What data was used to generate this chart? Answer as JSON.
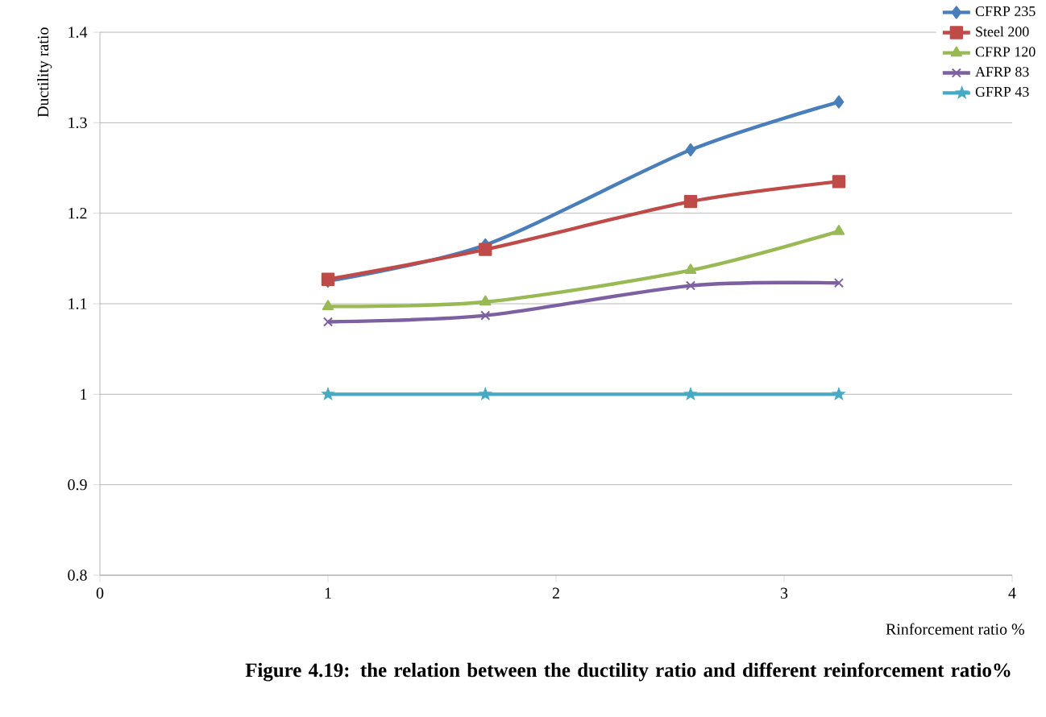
{
  "chart_data": {
    "type": "line",
    "title": "Figure 4.19: the relation between the ductility ratio and different reinforcement ratio%",
    "xlabel": "Rinforcement ratio %",
    "ylabel": "Ductility ratio",
    "x": [
      1.0,
      1.69,
      2.59,
      3.24
    ],
    "series": [
      {
        "name": "CFRP 235",
        "color": "#4a7ebb",
        "marker": "diamond",
        "values": [
          1.125,
          1.165,
          1.27,
          1.323
        ]
      },
      {
        "name": "Steel 200",
        "color": "#be4b48",
        "marker": "square",
        "values": [
          1.127,
          1.16,
          1.213,
          1.235
        ]
      },
      {
        "name": "CFRP 120",
        "color": "#98b954",
        "marker": "triangle",
        "values": [
          1.097,
          1.102,
          1.137,
          1.18
        ]
      },
      {
        "name": "AFRP 83",
        "color": "#7d60a0",
        "marker": "cross",
        "values": [
          1.08,
          1.087,
          1.12,
          1.123
        ]
      },
      {
        "name": "GFRP 43",
        "color": "#46aac5",
        "marker": "star",
        "values": [
          1.0,
          1.0,
          1.0,
          1.0
        ]
      }
    ],
    "xlim": [
      0,
      4
    ],
    "ylim": [
      0.8,
      1.4
    ],
    "xticks": [
      0,
      1,
      2,
      3,
      4
    ],
    "yticks": [
      0.8,
      0.9,
      1,
      1.1,
      1.2,
      1.3,
      1.4
    ],
    "grid": "y",
    "legend": "top right",
    "line_style": "solid"
  }
}
